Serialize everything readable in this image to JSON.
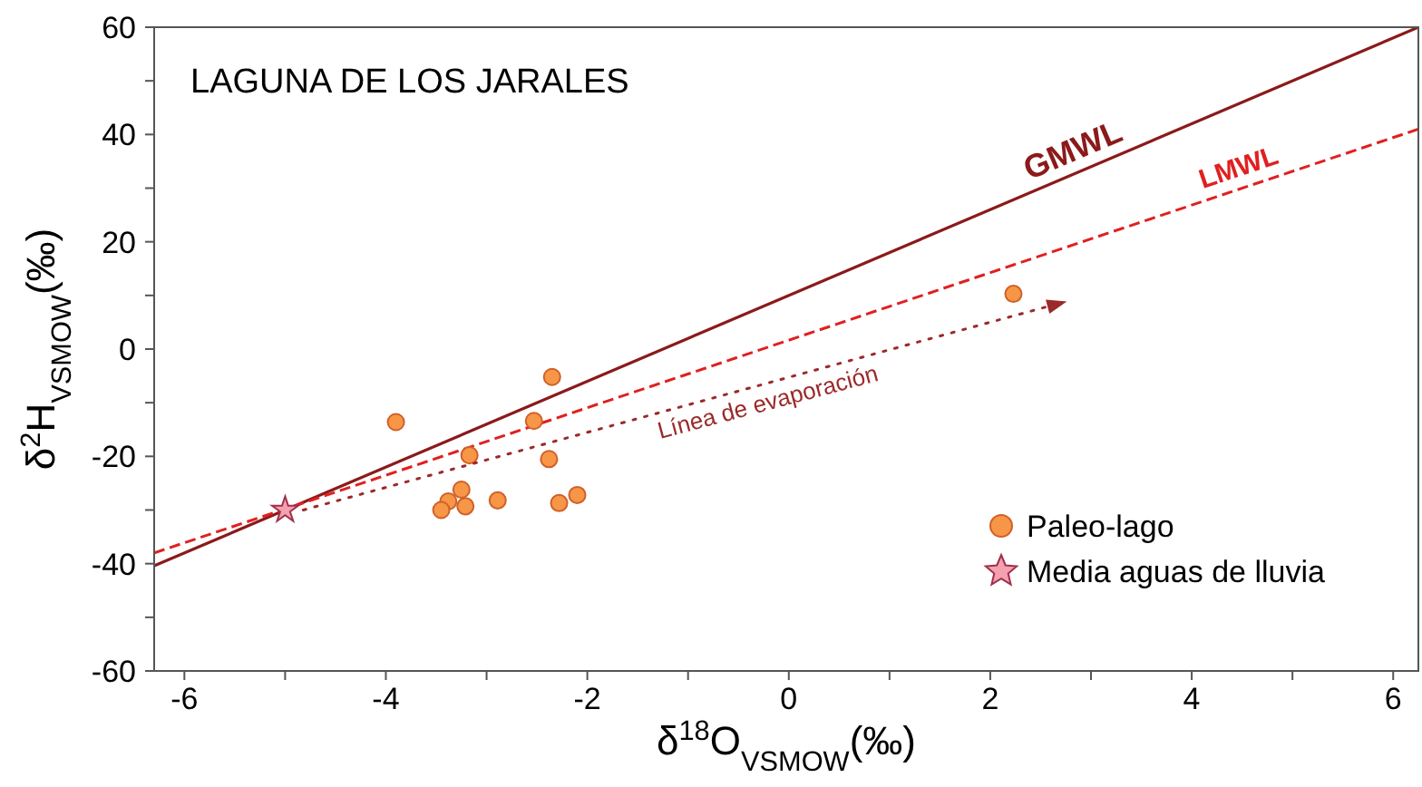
{
  "chart_data": {
    "type": "scatter",
    "title": "LAGUNA DE LOS JARALES",
    "xlabel": "δ$^{18}$O$_{VSMOW}$(‰)",
    "ylabel": "δ$^{2}$H$_{VSMOW}$(‰)",
    "xlim": [
      -6.3,
      6.25
    ],
    "ylim": [
      -60,
      60
    ],
    "xticks": [
      -6,
      {
        "value": -5,
        "label": null
      },
      -4,
      {
        "value": -3,
        "label": null
      },
      -2,
      {
        "value": -1,
        "label": null
      },
      0,
      {
        "value": 1,
        "label": null
      },
      2,
      {
        "value": 3,
        "label": null
      },
      4,
      {
        "value": 5,
        "label": null
      },
      6
    ],
    "yticks": [
      -60,
      {
        "value": -50,
        "label": null
      },
      -40,
      {
        "value": -30,
        "label": null
      },
      -20,
      {
        "value": -10,
        "label": null
      },
      0,
      {
        "value": 10,
        "label": null
      },
      20,
      {
        "value": 30,
        "label": null
      },
      40,
      {
        "value": 50,
        "label": null
      },
      60
    ],
    "grid": false,
    "legend": "bottom right",
    "annotations": [
      "Línea de evaporación"
    ],
    "series": [
      {
        "name": "GMWL",
        "type": "line",
        "color": "#8b1a1a",
        "line_style": "solid",
        "marker": "none",
        "x": [
          -6.3,
          6.25
        ],
        "values": [
          -40.4,
          60
        ]
      },
      {
        "name": "LMWL",
        "type": "line",
        "color": "#e02020",
        "line_style": "dashed",
        "marker": "none",
        "x": [
          -6.3,
          6.25
        ],
        "values": [
          -38,
          41
        ]
      },
      {
        "name": "Paleo-lago",
        "color": "#f79646",
        "marker": "circle",
        "x": [
          -3.9,
          -2.35,
          -2.53,
          -3.17,
          -2.38,
          -3.25,
          -3.38,
          -3.45,
          -3.21,
          -2.89,
          -2.28,
          -2.1,
          2.23
        ],
        "values": [
          -13.6,
          -5.2,
          -13.4,
          -19.8,
          -20.5,
          -26.2,
          -28.4,
          -30,
          -29.3,
          -28.2,
          -28.7,
          -27.2,
          10.3
        ]
      },
      {
        "name": "Media aguas de lluvia",
        "color": "#f4a0b0",
        "marker": "star",
        "x": [
          -5
        ],
        "values": [
          -30
        ]
      }
    ]
  }
}
